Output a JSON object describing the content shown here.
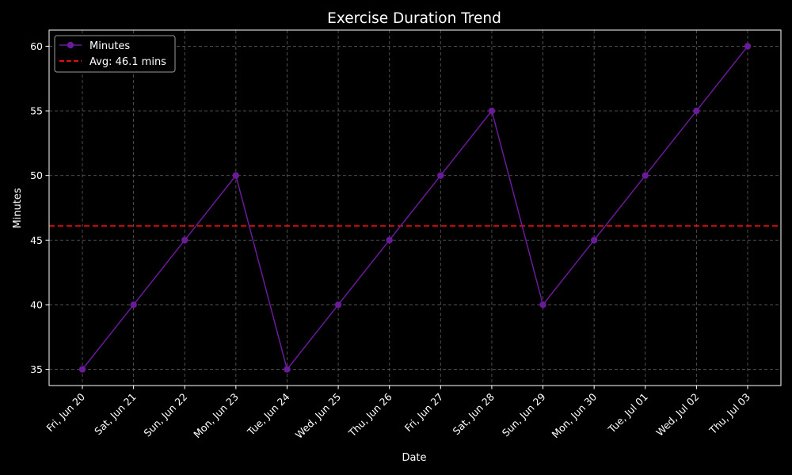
{
  "chart_data": {
    "type": "line",
    "title": "Exercise Duration Trend",
    "xlabel": "Date",
    "ylabel": "Minutes",
    "categories": [
      "Fri, Jun 20",
      "Sat, Jun 21",
      "Sun, Jun 22",
      "Mon, Jun 23",
      "Tue, Jun 24",
      "Wed, Jun 25",
      "Thu, Jun 26",
      "Fri, Jun 27",
      "Sat, Jun 28",
      "Sun, Jun 29",
      "Mon, Jun 30",
      "Tue, Jul 01",
      "Wed, Jul 02",
      "Thu, Jul 03"
    ],
    "series": [
      {
        "name": "Minutes",
        "values": [
          35,
          40,
          45,
          50,
          35,
          40,
          45,
          50,
          55,
          40,
          45,
          50,
          55,
          60
        ],
        "color": "#6a1b9a"
      }
    ],
    "reference_line": {
      "label": "Avg: 46.1 mins",
      "value": 46.1,
      "color": "#e01010"
    },
    "ylim": [
      33.75,
      61.25
    ],
    "yticks": [
      35,
      40,
      45,
      50,
      55,
      60
    ],
    "grid": true,
    "legend_position": "top-left",
    "background": "#000000"
  }
}
